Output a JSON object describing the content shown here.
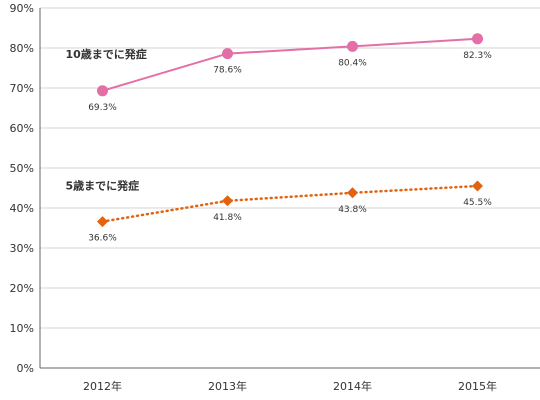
{
  "chart_data": {
    "type": "line",
    "categories": [
      "2012年",
      "2013年",
      "2014年",
      "2015年"
    ],
    "ylim": [
      0,
      90
    ],
    "y_ticks": [
      "0%",
      "10%",
      "20%",
      "30%",
      "40%",
      "50%",
      "60%",
      "70%",
      "80%",
      "90%"
    ],
    "grid": "horizontal",
    "series": [
      {
        "name": "10歳までに発症",
        "values": [
          69.3,
          78.6,
          80.4,
          82.3
        ],
        "labels": [
          "69.3%",
          "78.6%",
          "80.4%",
          "82.3%"
        ],
        "color": "#e46fa6",
        "line_style": "solid",
        "marker": "circle"
      },
      {
        "name": "5歳までに発症",
        "values": [
          36.6,
          41.8,
          43.8,
          45.5
        ],
        "labels": [
          "36.6%",
          "41.8%",
          "43.8%",
          "45.5%"
        ],
        "color": "#e2620d",
        "line_style": "dotted",
        "marker": "diamond"
      }
    ],
    "gridline_color": "#d4d4d4",
    "axis_color": "#666666"
  }
}
